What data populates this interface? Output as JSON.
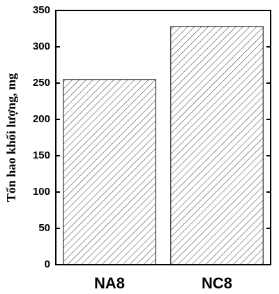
{
  "chart_data": {
    "type": "bar",
    "ylabel": "Tổn hao khối lượng, mg",
    "categories": [
      "NA8",
      "NC8"
    ],
    "values": [
      255,
      328
    ],
    "color": "#000000",
    "ylim": [
      0,
      350
    ],
    "yticks": [
      0,
      50,
      100,
      150,
      200,
      250,
      300,
      350
    ]
  }
}
